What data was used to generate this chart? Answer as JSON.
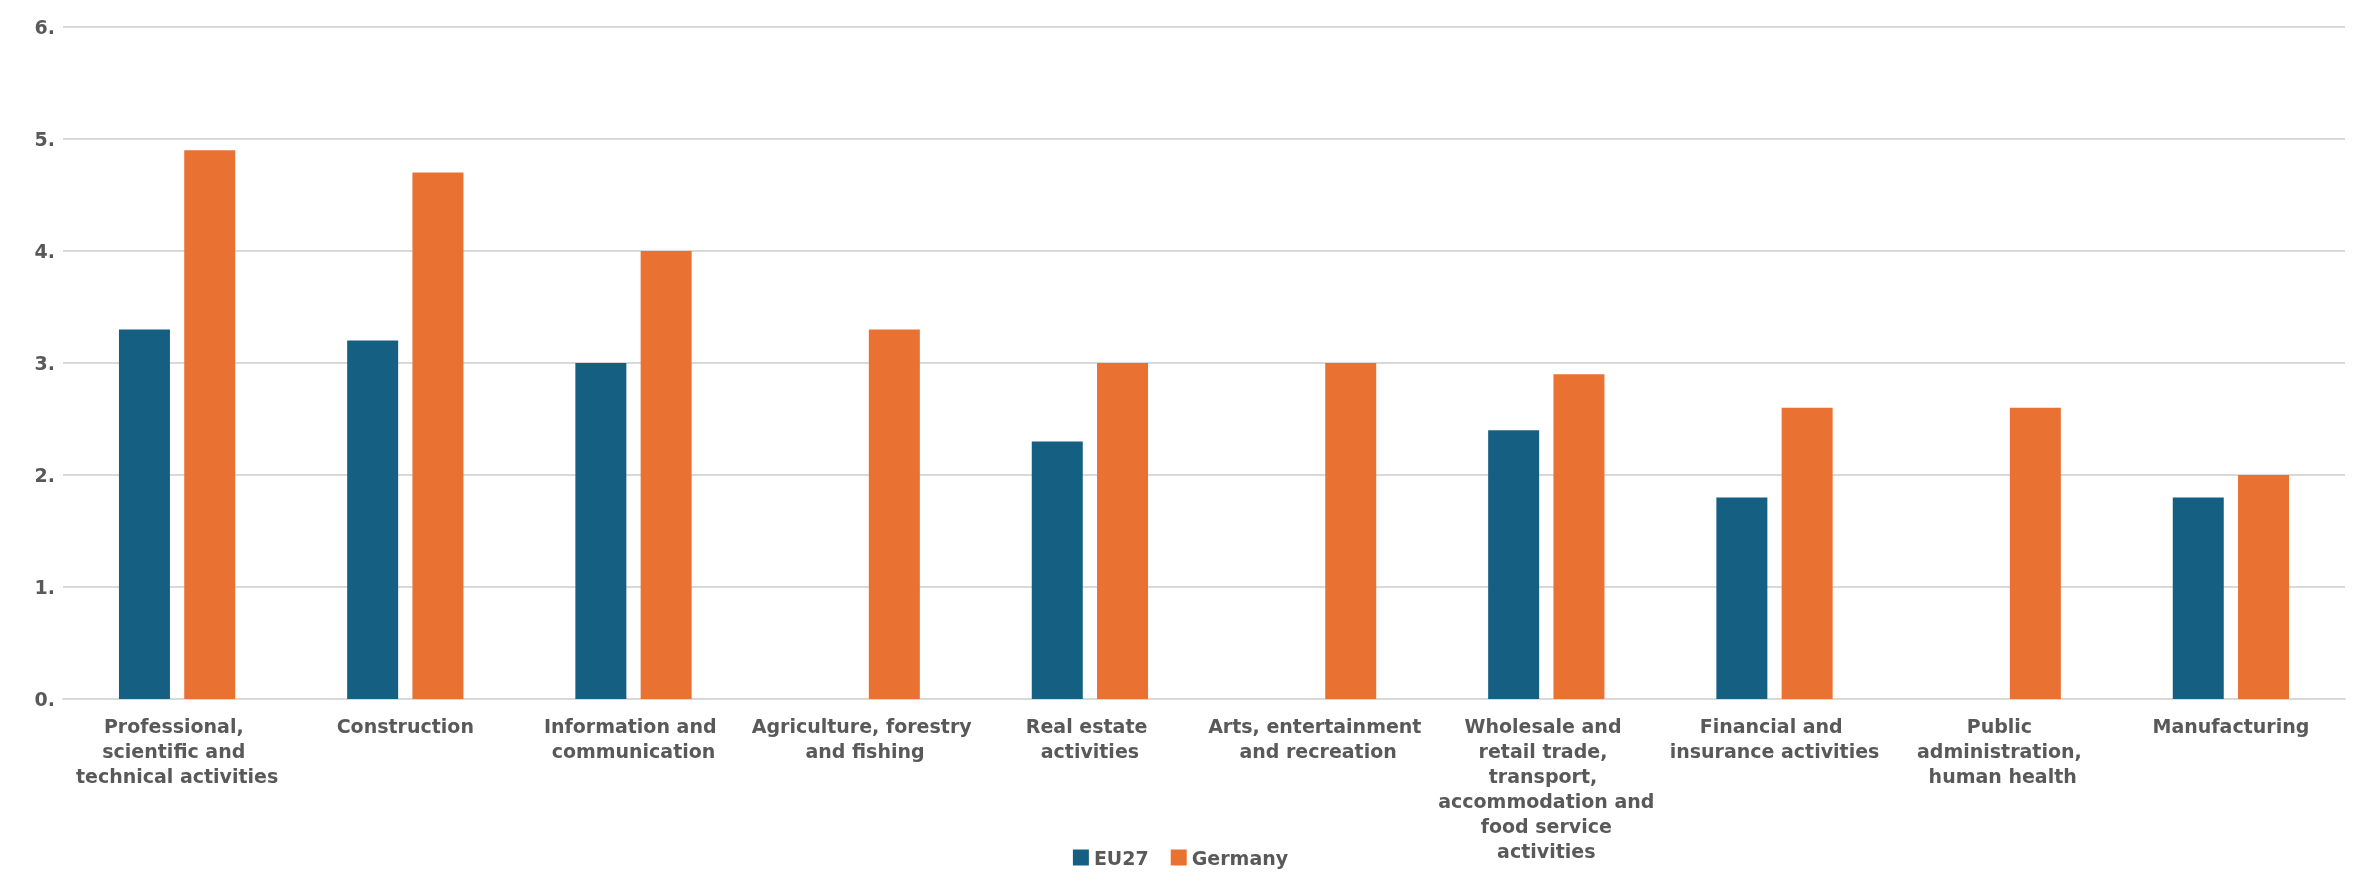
{
  "chart_data": {
    "type": "bar",
    "categories": [
      "Professional, scientific and technical activities",
      "Construction",
      "Information and communication",
      "Agriculture, forestry and fishing",
      "Real estate activities",
      "Arts, entertainment and recreation",
      "Wholesale and retail trade, transport, accommodation and food service activities",
      "Financial and insurance activities",
      "Public administration, human health",
      "Manufacturing"
    ],
    "series": [
      {
        "name": "EU27",
        "color": "#156082",
        "values": [
          3.3,
          3.2,
          3.0,
          null,
          2.3,
          null,
          2.4,
          1.8,
          null,
          1.8
        ]
      },
      {
        "name": "Germany",
        "color": "#e97132",
        "values": [
          4.9,
          4.7,
          4.0,
          3.3,
          3.0,
          3.0,
          2.9,
          2.6,
          2.6,
          2.0
        ]
      }
    ],
    "ylim": [
      0,
      6
    ],
    "yticks": [
      {
        "value": 0,
        "label": "0."
      },
      {
        "value": 1,
        "label": "1."
      },
      {
        "value": 2,
        "label": "2."
      },
      {
        "value": 3,
        "label": "3."
      },
      {
        "value": 4,
        "label": "4."
      },
      {
        "value": 5,
        "label": "5."
      },
      {
        "value": 6,
        "label": "6."
      }
    ],
    "grid": "y",
    "legend": "bottom"
  }
}
